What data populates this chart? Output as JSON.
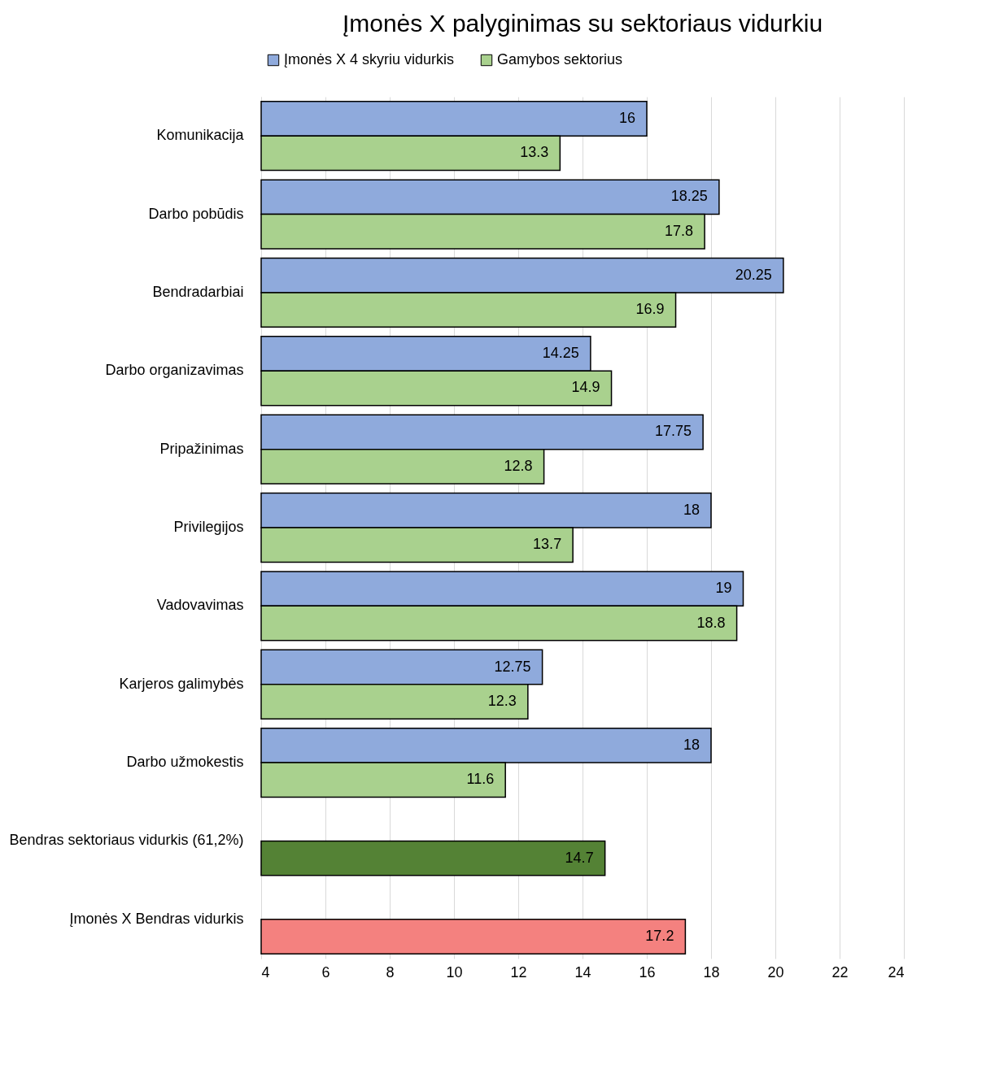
{
  "chart_data": {
    "type": "bar",
    "orientation": "horizontal",
    "title": "Įmonės X palyginimas su sektoriaus vidurkiu",
    "categories": [
      "Komunikacija",
      "Darbo pobūdis",
      "Bendradarbiai",
      "Darbo organizavimas",
      "Pripažinimas",
      "Privilegijos",
      "Vadovavimas",
      "Karjeros galimybės",
      "Darbo užmokestis",
      "Bendras sektoriaus vidurkis (61,2%)",
      "Įmonės X Bendras vidurkis"
    ],
    "series": [
      {
        "name": "Įmonės X 4 skyriu vidurkis",
        "color": "#8faadc",
        "values": [
          16,
          18.25,
          20.25,
          14.25,
          17.75,
          18,
          19,
          12.75,
          18,
          null,
          null
        ]
      },
      {
        "name": "Gamybos sektorius",
        "color": "#a9d18e",
        "colors": [
          "#a9d18e",
          "#a9d18e",
          "#a9d18e",
          "#a9d18e",
          "#a9d18e",
          "#a9d18e",
          "#a9d18e",
          "#a9d18e",
          "#a9d18e",
          "#548235",
          "#f4817f"
        ],
        "values": [
          13.3,
          17.8,
          16.9,
          14.9,
          12.8,
          13.7,
          18.8,
          12.3,
          11.6,
          14.7,
          17.2
        ]
      }
    ],
    "xlim": [
      4,
      24
    ],
    "xticks": [
      4,
      6,
      8,
      10,
      12,
      14,
      16,
      18,
      20,
      22,
      24
    ],
    "grid": "x",
    "legend": "top",
    "data_labels": true
  }
}
